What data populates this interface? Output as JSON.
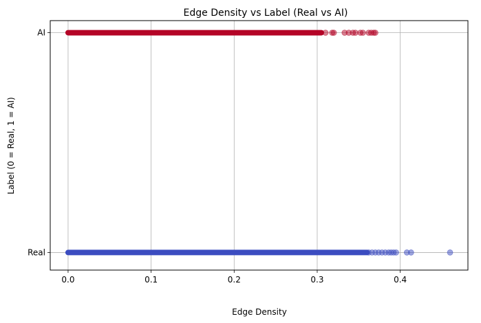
{
  "chart_data": {
    "type": "scatter",
    "title": "Edge Density vs Label (Real vs AI)",
    "xlabel": "Edge Density",
    "ylabel": "Label (0 = Real, 1 = AI)",
    "xlim": [
      -0.0215,
      0.4815
    ],
    "ylim": [
      -0.08,
      1.055
    ],
    "x_ticks": [
      0.0,
      0.1,
      0.2,
      0.3,
      0.4
    ],
    "x_tick_labels": [
      "0.0",
      "0.1",
      "0.2",
      "0.3",
      "0.4"
    ],
    "y_ticks": [
      0,
      1
    ],
    "y_tick_labels": [
      "Real",
      "AI"
    ],
    "grid": true,
    "marker_alpha": 0.5,
    "series": [
      {
        "label_value": 1,
        "color": "#b40426",
        "dense_range": [
          0.0,
          0.305
        ],
        "x": [
          0.31,
          0.318,
          0.32,
          0.333,
          0.338,
          0.343,
          0.346,
          0.352,
          0.355,
          0.362,
          0.365,
          0.368,
          0.37
        ]
      },
      {
        "label_value": 0,
        "color": "#3b4cc0",
        "dense_range": [
          0.0,
          0.36
        ],
        "x": [
          0.362,
          0.366,
          0.37,
          0.374,
          0.378,
          0.382,
          0.386,
          0.389,
          0.392,
          0.395,
          0.408,
          0.413,
          0.46
        ]
      }
    ]
  }
}
